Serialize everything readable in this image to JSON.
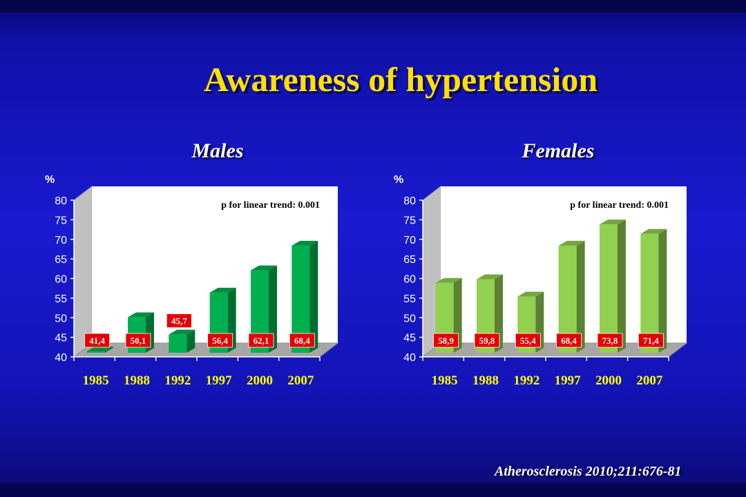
{
  "slide": {
    "title": "Awareness of hypertension",
    "reference": "Atherosclerosis 2010;211:676-81"
  },
  "colors": {
    "background": "#1a1ad0",
    "title": "#ffe000",
    "males_bar": "#00b050",
    "females_bar": "#92d050",
    "label_box": "#e60000",
    "plot_wall": "#ffffff",
    "floor": "#a6a6a6",
    "year_labels": "#ffff00"
  },
  "chart_data": [
    {
      "type": "bar",
      "title": "Males",
      "ylabel": "%",
      "annotation": "p for linear trend: 0.001",
      "categories": [
        "1985",
        "1988",
        "1992",
        "1997",
        "2000",
        "2007"
      ],
      "values": [
        41.4,
        50.1,
        45.7,
        56.4,
        62.1,
        68.4
      ],
      "data_labels": [
        "41,4",
        "50,1",
        "45,7",
        "56,4",
        "62,1",
        "68,4"
      ],
      "ylim": [
        40,
        80
      ],
      "yticks": [
        40,
        45,
        50,
        55,
        60,
        65,
        70,
        75,
        80
      ],
      "grid": false,
      "bar_color": "#00b050"
    },
    {
      "type": "bar",
      "title": "Females",
      "ylabel": "%",
      "annotation": "p for linear trend: 0.001",
      "categories": [
        "1985",
        "1988",
        "1992",
        "1997",
        "2000",
        "2007"
      ],
      "values": [
        58.9,
        59.8,
        55.4,
        68.4,
        73.8,
        71.4
      ],
      "data_labels": [
        "58,9",
        "59,8",
        "55,4",
        "68,4",
        "73,8",
        "71,4"
      ],
      "ylim": [
        40,
        80
      ],
      "yticks": [
        40,
        45,
        50,
        55,
        60,
        65,
        70,
        75,
        80
      ],
      "grid": false,
      "bar_color": "#92d050"
    }
  ]
}
